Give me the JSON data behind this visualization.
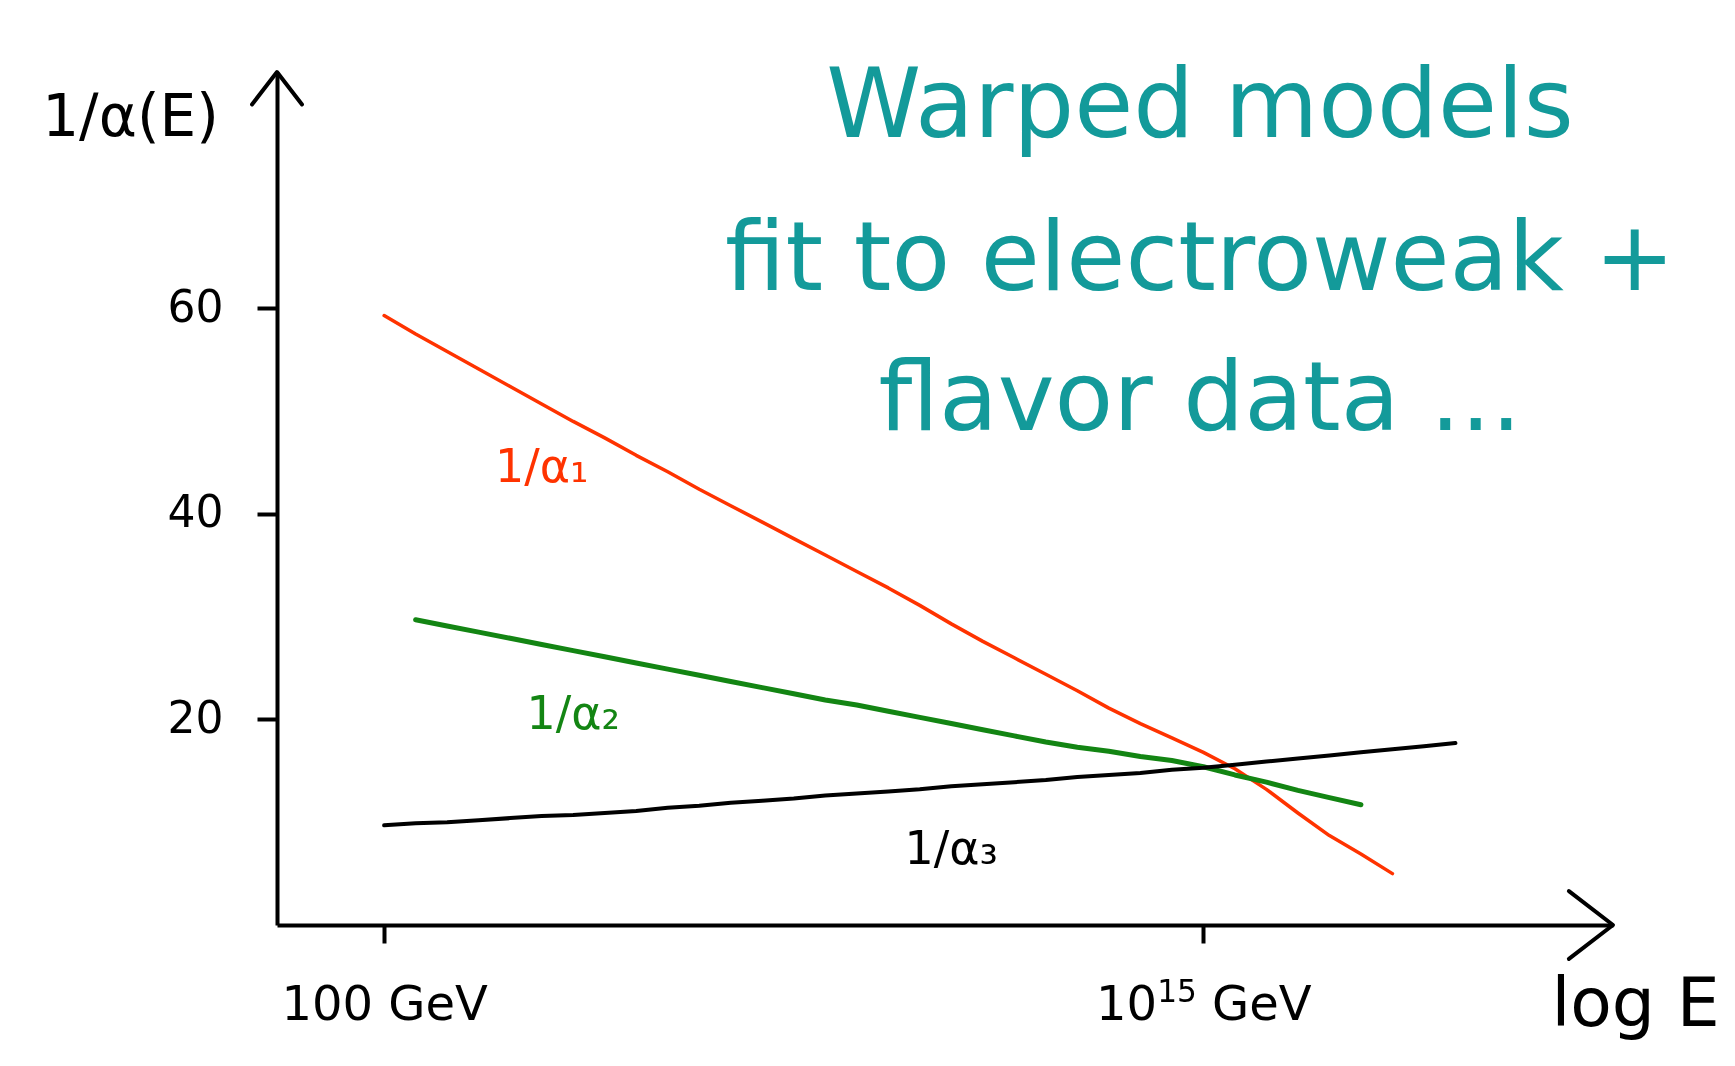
{
  "chart_data": {
    "type": "line",
    "title": "Warped models",
    "subtitle": "fit to electroweak + flavor data ...",
    "xlabel": "log E",
    "ylabel": "1/α(E)",
    "categories": [
      null,
      null,
      null,
      "100 GeV",
      null,
      null,
      null,
      null,
      null,
      null,
      null,
      null,
      null,
      null,
      null,
      null,
      null,
      null,
      null,
      null,
      null,
      null,
      null,
      null,
      null,
      null,
      null,
      null,
      null,
      "10$^{15}$ GeV",
      null,
      null,
      null,
      null,
      null,
      null,
      null,
      null,
      null,
      null,
      null,
      null
    ],
    "ylim": [
      0,
      83
    ],
    "yticks": [
      20,
      40,
      60
    ],
    "series": [
      {
        "name": "1/α₁",
        "color": "#ff3300",
        "values": [
          null,
          null,
          null,
          59.3,
          57.5,
          55.8,
          54.1,
          52.4,
          50.7,
          49.0,
          47.4,
          45.7,
          44.1,
          42.4,
          40.8,
          39.2,
          37.6,
          36.0,
          34.4,
          32.8,
          31.1,
          29.3,
          27.6,
          26.0,
          24.4,
          22.8,
          21.1,
          19.6,
          18.2,
          16.8,
          15.2,
          13.2,
          10.9,
          8.7,
          6.9,
          5.0,
          null,
          null,
          null,
          null,
          null,
          null
        ]
      },
      {
        "name": "1/α₂",
        "color": "#138513",
        "values": [
          null,
          null,
          null,
          null,
          29.7,
          29.1,
          28.5,
          27.9,
          27.3,
          26.7,
          26.1,
          25.5,
          24.9,
          24.3,
          23.7,
          23.1,
          22.5,
          21.9,
          21.4,
          20.8,
          20.2,
          19.6,
          19.0,
          18.4,
          17.8,
          17.3,
          16.9,
          16.4,
          16.0,
          15.4,
          14.6,
          13.9,
          13.1,
          12.4,
          11.7,
          null,
          null,
          null,
          null,
          null,
          null,
          null
        ]
      },
      {
        "name": "1/α₃",
        "color": "#000000",
        "values": [
          null,
          null,
          null,
          9.7,
          9.9,
          10.0,
          10.2,
          10.4,
          10.6,
          10.7,
          10.9,
          11.1,
          11.4,
          11.6,
          11.9,
          12.1,
          12.3,
          12.6,
          12.8,
          13.0,
          13.2,
          13.5,
          13.7,
          13.9,
          14.1,
          14.4,
          14.6,
          14.8,
          15.1,
          15.3,
          15.6,
          15.9,
          16.2,
          16.5,
          16.8,
          17.1,
          17.4,
          17.7,
          null,
          null,
          null,
          null
        ]
      }
    ]
  }
}
